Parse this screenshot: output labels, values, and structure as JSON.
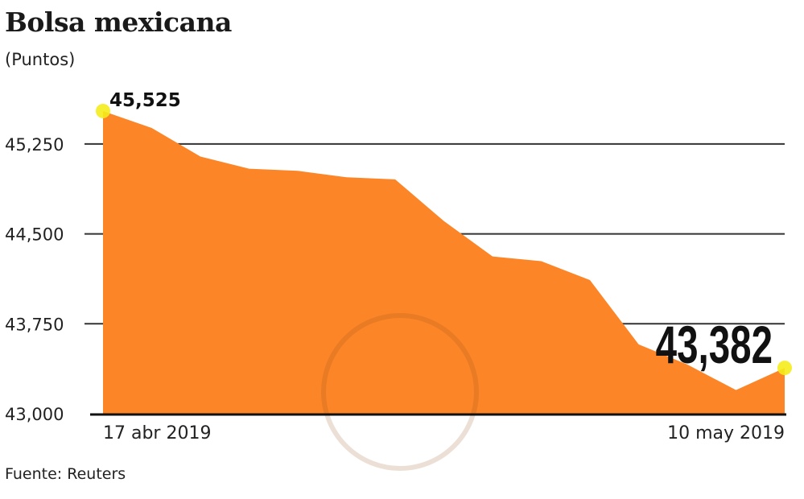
{
  "title": "Bolsa mexicana",
  "subtitle": "(Puntos)",
  "source": "Fuente: Reuters",
  "colors": {
    "area": "#fb8527",
    "marker": "#f5ec1a",
    "grid": "#333333"
  },
  "chart_data": {
    "type": "area",
    "title": "Bolsa mexicana",
    "ylabel": "(Puntos)",
    "ylim": [
      43000,
      45525
    ],
    "yticks": [
      43000,
      43750,
      44500,
      45250
    ],
    "ytick_labels": [
      "43,000",
      "43,750",
      "44,500",
      "45,250"
    ],
    "x_labels": {
      "first": "17 abr 2019",
      "last": "10 may 2019"
    },
    "values": [
      45525,
      45384,
      45145,
      45044,
      45026,
      44972,
      44955,
      44607,
      44312,
      44272,
      44115,
      43578,
      43410,
      43197,
      43382
    ],
    "annotations": {
      "first": "45,525",
      "last": "43,382"
    },
    "grid": true
  }
}
